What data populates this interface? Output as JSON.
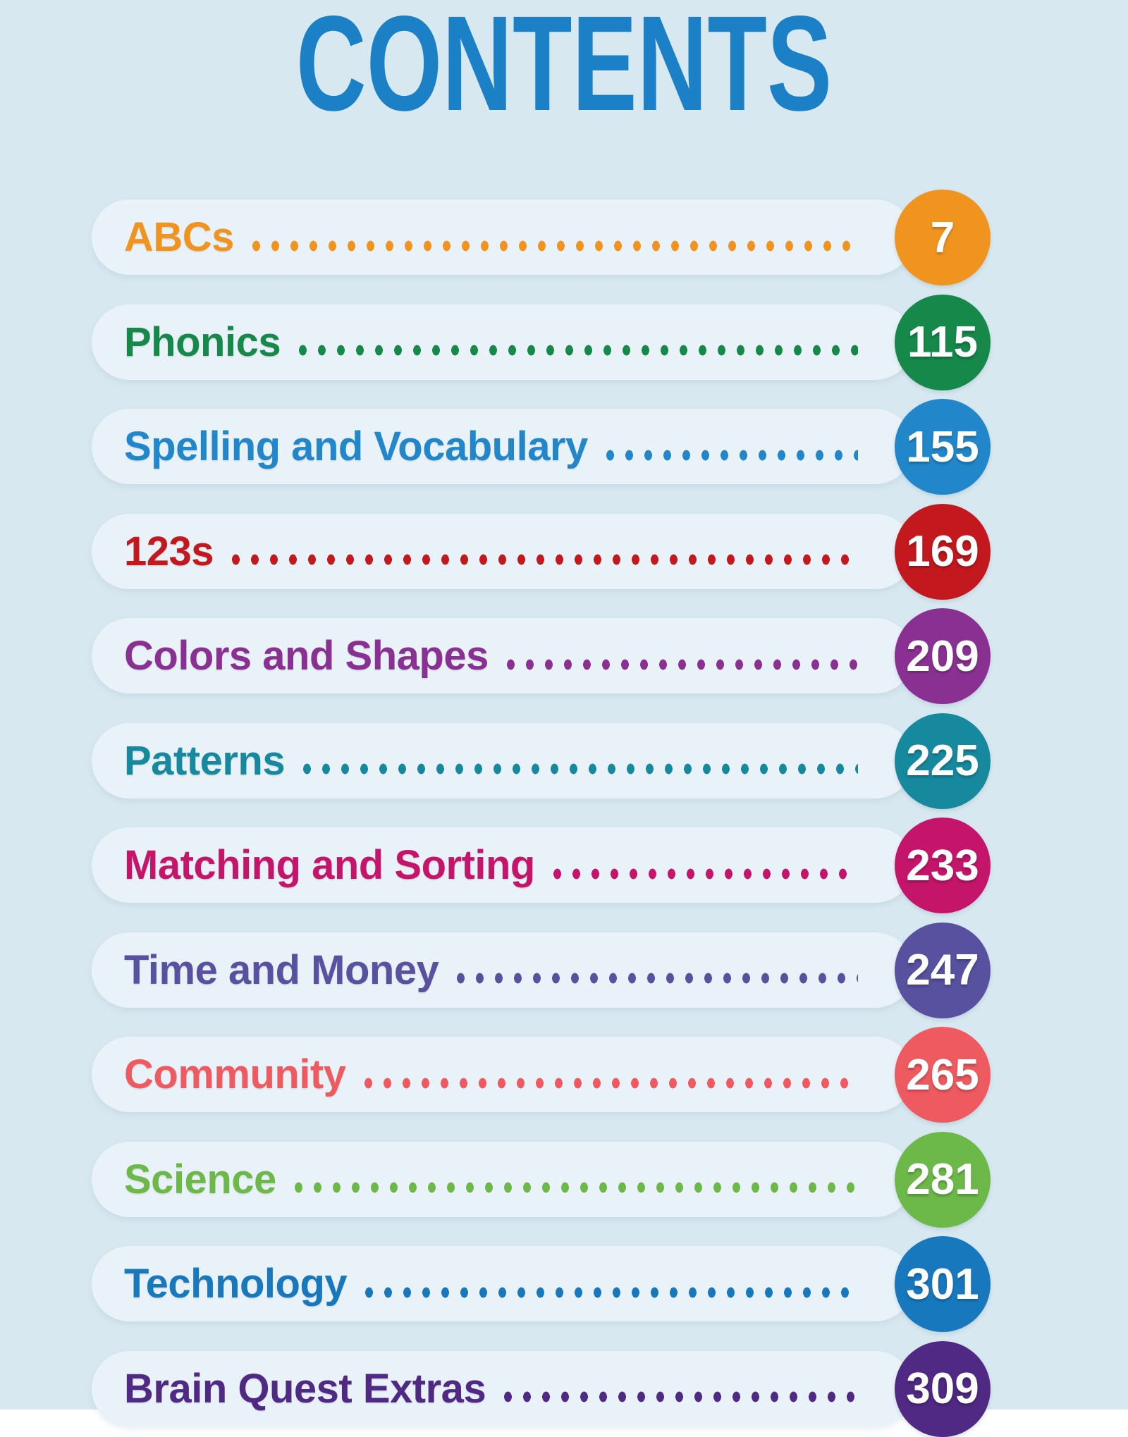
{
  "page": {
    "title": "CONTENTS",
    "title_color": "#1C80C6",
    "background_color": "#D8E8F0",
    "pill_color": "#E9F2F8",
    "number_text_color": "#FFFFFF"
  },
  "contents": {
    "items": [
      {
        "label": "ABCs",
        "page": "7",
        "color": "#F0941F"
      },
      {
        "label": "Phonics",
        "page": "115",
        "color": "#15884A"
      },
      {
        "label": "Spelling and Vocabulary",
        "page": "155",
        "color": "#2187CA"
      },
      {
        "label": "123s",
        "page": "169",
        "color": "#C2181E"
      },
      {
        "label": "Colors and Shapes",
        "page": "209",
        "color": "#8A3092"
      },
      {
        "label": "Patterns",
        "page": "225",
        "color": "#17899E"
      },
      {
        "label": "Matching and Sorting",
        "page": "233",
        "color": "#C5156A"
      },
      {
        "label": "Time and Money",
        "page": "247",
        "color": "#57519F"
      },
      {
        "label": "Community",
        "page": "265",
        "color": "#EE5A60"
      },
      {
        "label": "Science",
        "page": "281",
        "color": "#6CB849"
      },
      {
        "label": "Technology",
        "page": "301",
        "color": "#1878BE"
      },
      {
        "label": "Brain Quest Extras",
        "page": "309",
        "color": "#4F2983"
      }
    ]
  }
}
